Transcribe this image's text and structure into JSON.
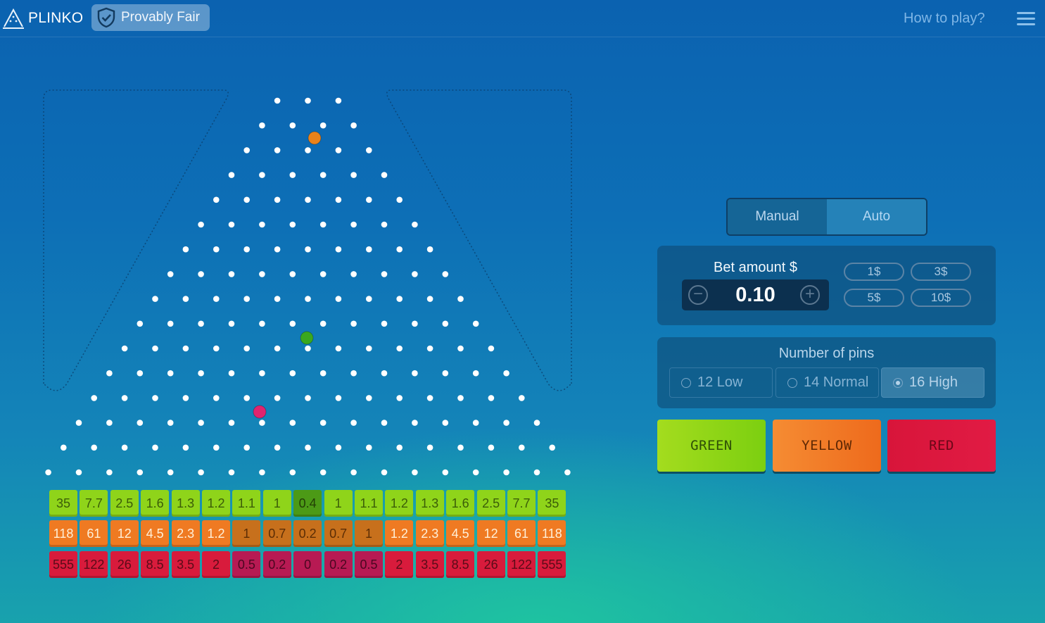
{
  "header": {
    "brand": "PLINKO",
    "provably_fair": "Provably Fair",
    "how_to_play": "How to play?"
  },
  "board": {
    "pin_rows": 16,
    "balls": [
      {
        "color": "orange",
        "hex": "#e9821b"
      },
      {
        "color": "green",
        "hex": "#3aa81e"
      },
      {
        "color": "pink",
        "hex": "#e0246f"
      }
    ]
  },
  "multipliers": {
    "green": [
      "35",
      "7.7",
      "2.5",
      "1.6",
      "1.3",
      "1.2",
      "1.1",
      "1",
      "0.4",
      "1",
      "1.1",
      "1.2",
      "1.3",
      "1.6",
      "2.5",
      "7.7",
      "35"
    ],
    "yellow": [
      "118",
      "61",
      "12",
      "4.5",
      "2.3",
      "1.2",
      "1",
      "0.7",
      "0.2",
      "0.7",
      "1",
      "1.2",
      "2.3",
      "4.5",
      "12",
      "61",
      "118"
    ],
    "red": [
      "555",
      "122",
      "26",
      "8.5",
      "3.5",
      "2",
      "0.5",
      "0.2",
      "0",
      "0.2",
      "0.5",
      "2",
      "3.5",
      "8.5",
      "26",
      "122",
      "555"
    ]
  },
  "mode_tabs": [
    "Manual",
    "Auto"
  ],
  "bet": {
    "label": "Bet amount $",
    "value": "0.10",
    "quick_amounts": [
      "1$",
      "3$",
      "5$",
      "10$"
    ]
  },
  "pins": {
    "label": "Number of pins",
    "options": [
      "12 Low",
      "14 Normal",
      "16 High"
    ],
    "selected": "16 High"
  },
  "risk_buttons": {
    "green": "GREEN",
    "yellow": "YELLOW",
    "red": "RED"
  }
}
